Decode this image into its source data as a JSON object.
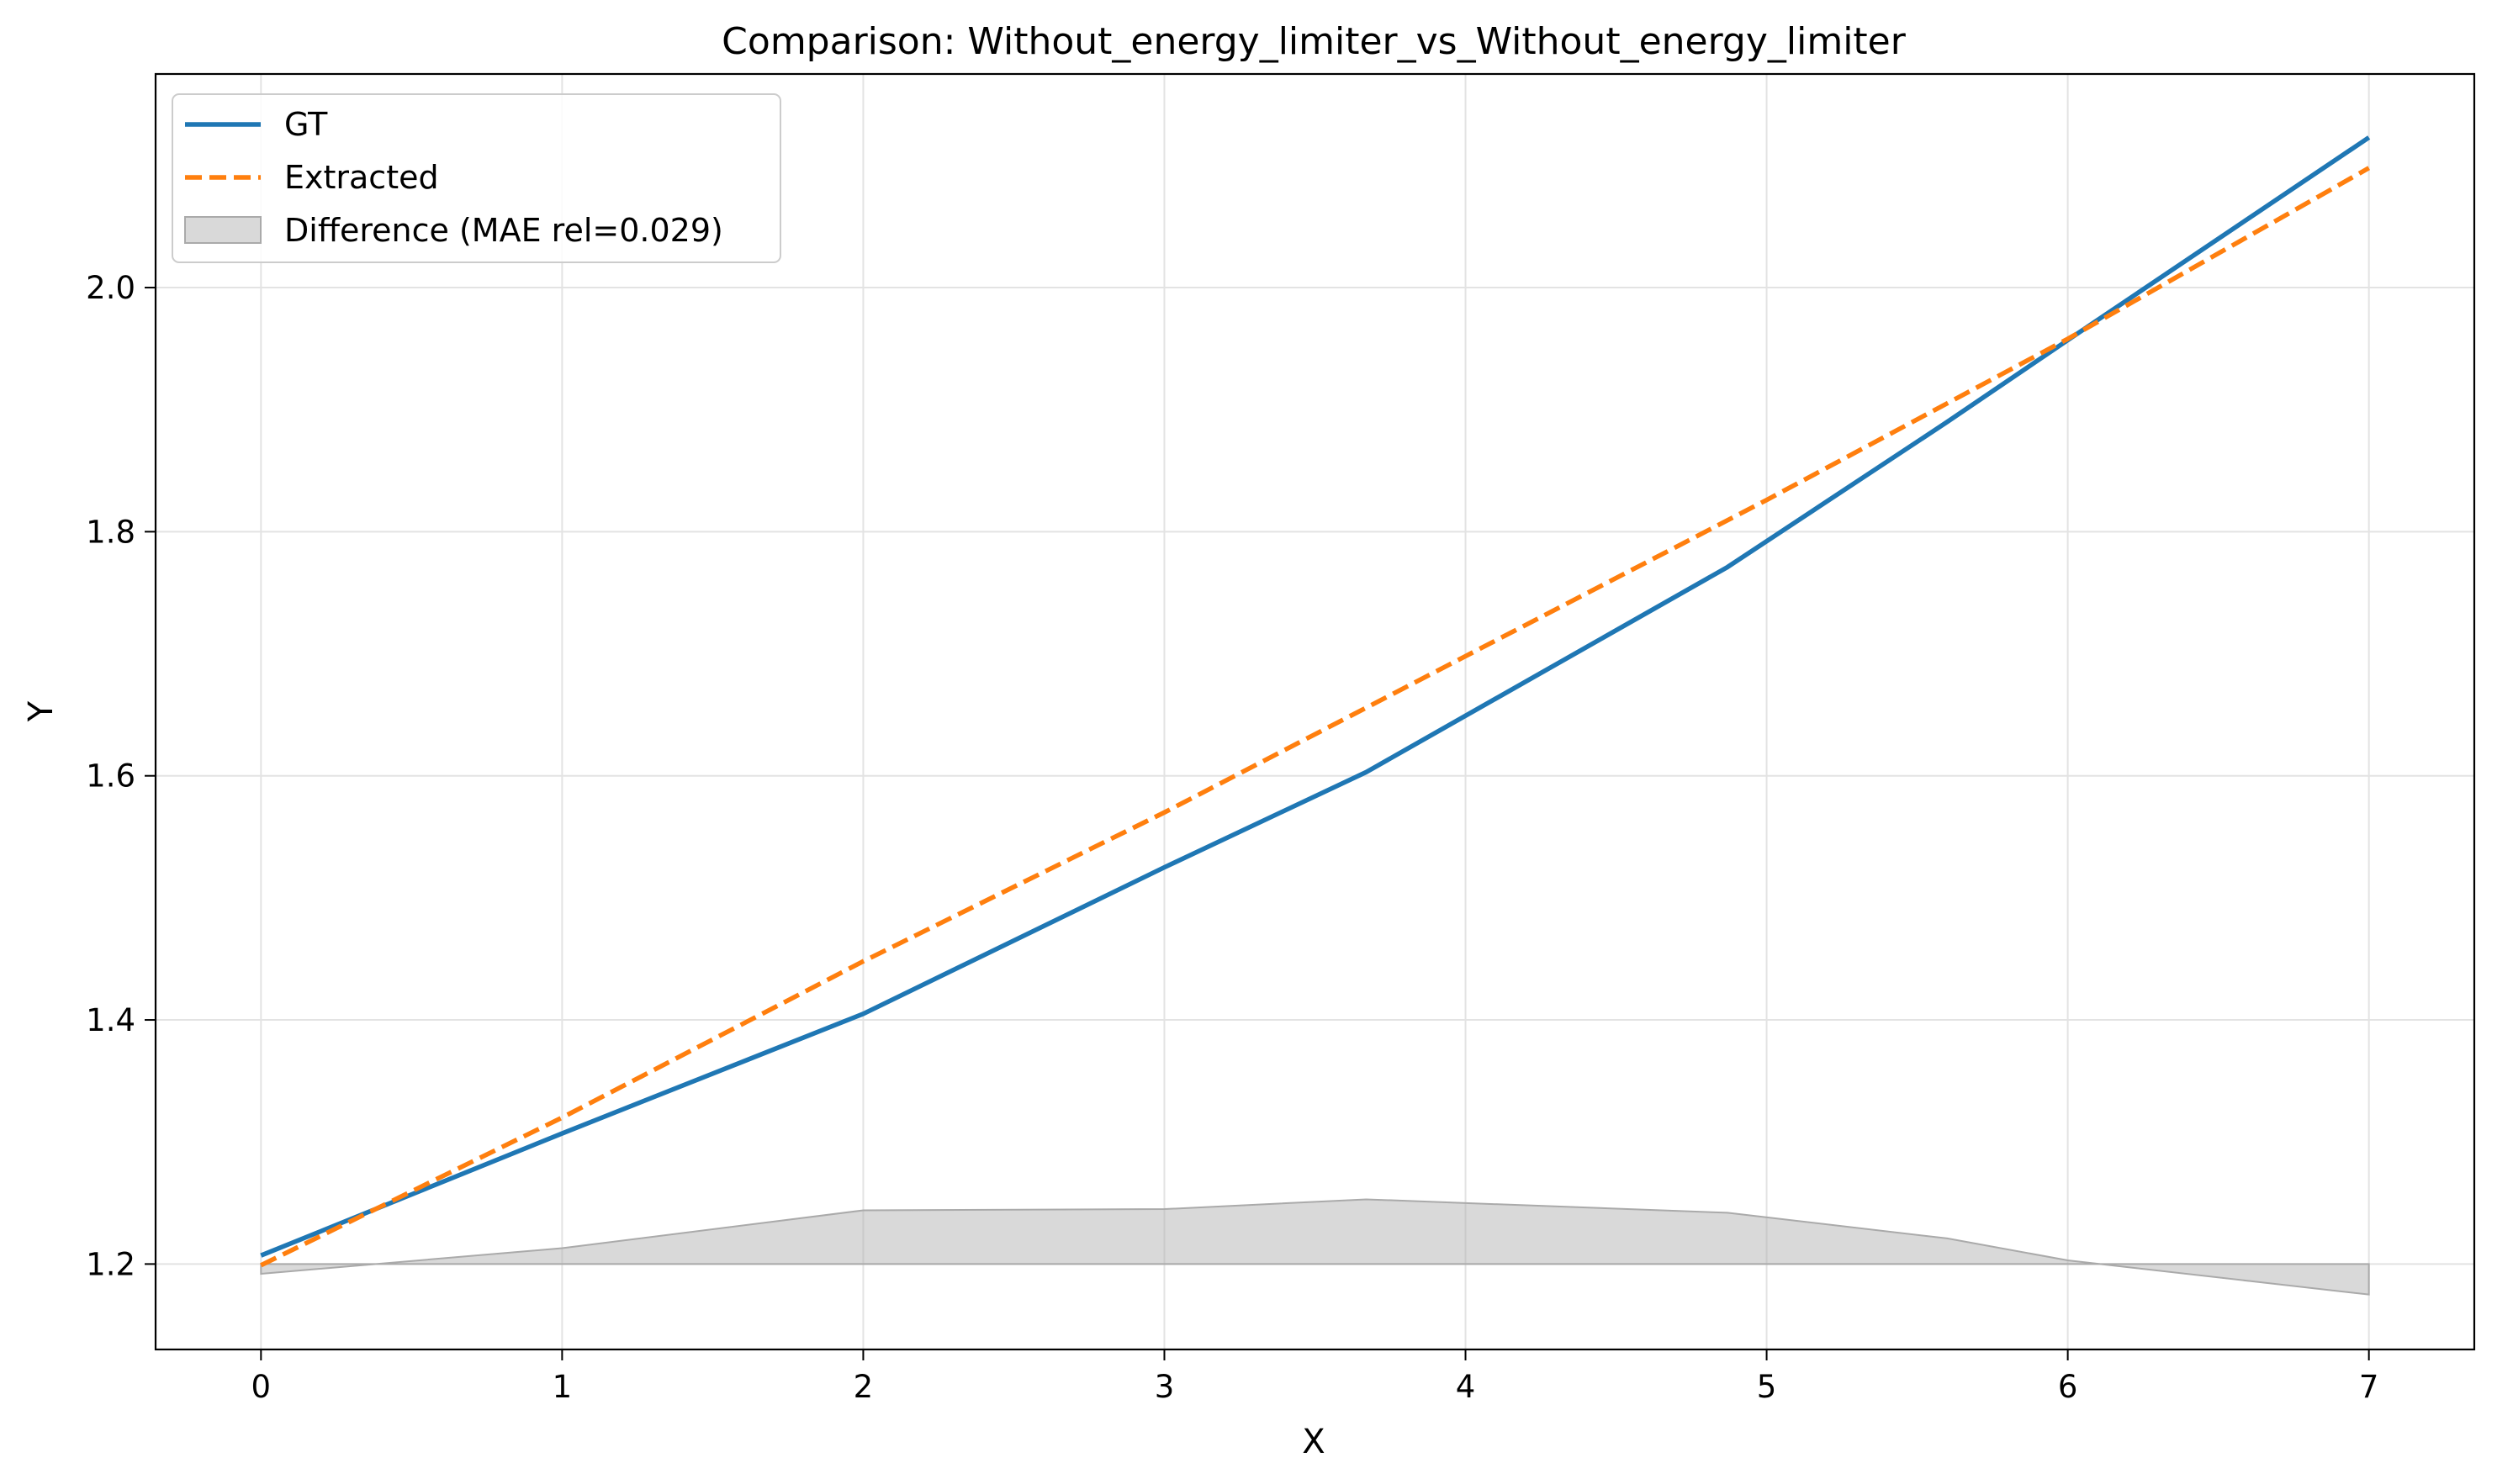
{
  "chart_data": {
    "type": "line",
    "title": "Comparison: Without_energy_limiter_vs_Without_energy_limiter",
    "xlabel": "X",
    "ylabel": "Y",
    "xlim": [
      -0.35,
      7.35
    ],
    "ylim": [
      1.13,
      2.175
    ],
    "xticks": [
      0,
      1,
      2,
      3,
      4,
      5,
      6,
      7
    ],
    "yticks": [
      1.2,
      1.4,
      1.6,
      1.8,
      2.0
    ],
    "grid": true,
    "legend_position": "top-left",
    "series": [
      {
        "name": "GT",
        "style": "solid",
        "color": "#1f77b4",
        "x": [
          0,
          1,
          2,
          3,
          3.67,
          4.87,
          5.6,
          6.0,
          7.0
        ],
        "y": [
          1.207,
          1.307,
          1.405,
          1.525,
          1.603,
          1.771,
          1.89,
          1.957,
          2.123
        ]
      },
      {
        "name": "Extracted",
        "style": "dashed",
        "color": "#ff7f0e",
        "x": [
          0,
          1,
          2,
          3,
          4,
          5,
          6,
          7
        ],
        "y": [
          1.199,
          1.32,
          1.448,
          1.57,
          1.698,
          1.826,
          1.958,
          2.098
        ]
      }
    ],
    "difference_band": {
      "name": "Difference (MAE rel=0.029)",
      "color": "#aaaaaa",
      "baseline": 1.2,
      "x": [
        0,
        1,
        2,
        3,
        3.67,
        4.87,
        5.6,
        6.0,
        7.0
      ],
      "y": [
        1.192,
        1.213,
        1.244,
        1.245,
        1.253,
        1.242,
        1.221,
        1.203,
        1.175
      ]
    }
  }
}
